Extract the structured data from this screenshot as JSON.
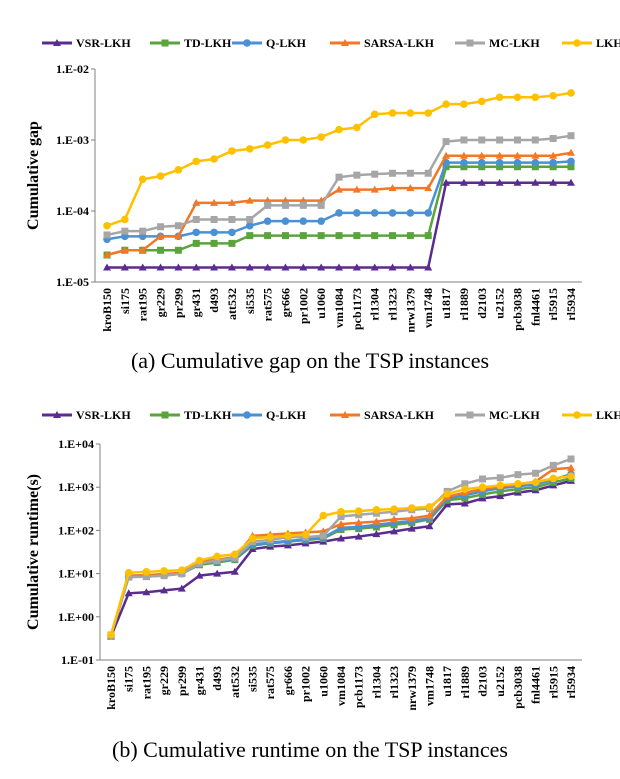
{
  "series_colors": [
    "#5b2c8f",
    "#5aa33d",
    "#4a90d4",
    "#f07826",
    "#a6a6a6",
    "#ffc000"
  ],
  "chart_data": [
    {
      "type": "line",
      "ylabel": "Cumulative gap",
      "caption": "(a) Cumulative gap on the TSP instances",
      "yscale": "log",
      "ylim": [
        1e-05,
        0.01
      ],
      "yticks": [
        1e-05,
        0.0001,
        0.001,
        0.01
      ],
      "ytick_labels": [
        "1.E-05",
        "1.E-04",
        "1.E-03",
        "1.E-02"
      ],
      "legend": "top",
      "grid": false,
      "categories": [
        "kroB150",
        "si175",
        "rat195",
        "gr229",
        "pr299",
        "gr431",
        "d493",
        "att532",
        "si535",
        "rat575",
        "gr666",
        "pr1002",
        "u1060",
        "vm1084",
        "pcb1173",
        "rl1304",
        "rl1323",
        "nrw1379",
        "vm1748",
        "u1817",
        "rl1889",
        "d2103",
        "u2152",
        "pcb3038",
        "fnl4461",
        "rl5915",
        "rl5934"
      ],
      "series": [
        {
          "name": "VSR-LKH",
          "values": [
            1.6e-05,
            1.6e-05,
            1.6e-05,
            1.6e-05,
            1.6e-05,
            1.6e-05,
            1.6e-05,
            1.6e-05,
            1.6e-05,
            1.6e-05,
            1.6e-05,
            1.6e-05,
            1.6e-05,
            1.6e-05,
            1.6e-05,
            1.6e-05,
            1.6e-05,
            1.6e-05,
            1.6e-05,
            0.00025,
            0.00025,
            0.00025,
            0.00025,
            0.00025,
            0.00025,
            0.00025,
            0.00025
          ]
        },
        {
          "name": "TD-LKH",
          "values": [
            2.4e-05,
            2.8e-05,
            2.8e-05,
            2.8e-05,
            2.8e-05,
            3.5e-05,
            3.5e-05,
            3.5e-05,
            4.5e-05,
            4.5e-05,
            4.5e-05,
            4.5e-05,
            4.5e-05,
            4.5e-05,
            4.5e-05,
            4.5e-05,
            4.5e-05,
            4.5e-05,
            4.5e-05,
            0.00042,
            0.00042,
            0.00042,
            0.00042,
            0.00042,
            0.00042,
            0.00042,
            0.00042
          ]
        },
        {
          "name": "Q-LKH",
          "values": [
            4e-05,
            4.4e-05,
            4.4e-05,
            4.4e-05,
            4.4e-05,
            5e-05,
            5e-05,
            5e-05,
            6.2e-05,
            7.2e-05,
            7.2e-05,
            7.2e-05,
            7.2e-05,
            9.4e-05,
            9.4e-05,
            9.4e-05,
            9.4e-05,
            9.4e-05,
            9.4e-05,
            0.00048,
            0.00048,
            0.00048,
            0.00048,
            0.00048,
            0.00048,
            0.00048,
            0.0005
          ]
        },
        {
          "name": "SARSA-LKH",
          "values": [
            2.4e-05,
            2.8e-05,
            2.8e-05,
            4.4e-05,
            4.4e-05,
            0.00013,
            0.00013,
            0.00013,
            0.00014,
            0.00014,
            0.00014,
            0.00014,
            0.00014,
            0.0002,
            0.0002,
            0.0002,
            0.00021,
            0.00021,
            0.00021,
            0.0006,
            0.0006,
            0.0006,
            0.0006,
            0.0006,
            0.0006,
            0.0006,
            0.00066
          ]
        },
        {
          "name": "MC-LKH",
          "values": [
            4.6e-05,
            5.2e-05,
            5.2e-05,
            6e-05,
            6.2e-05,
            7.6e-05,
            7.6e-05,
            7.6e-05,
            7.6e-05,
            0.00012,
            0.00012,
            0.00012,
            0.00012,
            0.0003,
            0.00032,
            0.00033,
            0.00034,
            0.00034,
            0.00034,
            0.00095,
            0.001,
            0.001,
            0.001,
            0.001,
            0.001,
            0.00105,
            0.00115
          ]
        },
        {
          "name": "LKH",
          "values": [
            6.2e-05,
            7.6e-05,
            0.00028,
            0.00031,
            0.00038,
            0.0005,
            0.00054,
            0.0007,
            0.00075,
            0.00085,
            0.001,
            0.001,
            0.0011,
            0.0014,
            0.0015,
            0.0023,
            0.0024,
            0.0024,
            0.0024,
            0.0032,
            0.0032,
            0.0035,
            0.004,
            0.004,
            0.004,
            0.0042,
            0.0046
          ]
        }
      ]
    },
    {
      "type": "line",
      "ylabel": "Cumulative runtime(s)",
      "caption": "(b) Cumulative runtime on the TSP instances",
      "yscale": "log",
      "ylim": [
        0.1,
        10000
      ],
      "yticks": [
        0.1,
        1,
        10,
        100,
        1000,
        10000
      ],
      "ytick_labels": [
        "1.E-01",
        "1.E+00",
        "1.E+01",
        "1.E+02",
        "1.E+03",
        "1.E+04"
      ],
      "legend": "top",
      "grid": false,
      "categories": [
        "kroB150",
        "si175",
        "rat195",
        "gr229",
        "pr299",
        "gr431",
        "d493",
        "att532",
        "si535",
        "rat575",
        "gr666",
        "pr1002",
        "u1060",
        "vm1084",
        "pcb1173",
        "rl1304",
        "rl1323",
        "nrw1379",
        "vm1748",
        "u1817",
        "rl1889",
        "d2103",
        "u2152",
        "pcb3038",
        "fnl4461",
        "rl5915",
        "rl5934"
      ],
      "series": [
        {
          "name": "VSR-LKH",
          "values": [
            0.35,
            3.5,
            3.7,
            4.1,
            4.5,
            9,
            10,
            11,
            37,
            42,
            45,
            50,
            55,
            65,
            72,
            82,
            95,
            110,
            125,
            400,
            420,
            550,
            620,
            750,
            850,
            1100,
            1400
          ]
        },
        {
          "name": "TD-LKH",
          "values": [
            0.37,
            8.5,
            8.6,
            9,
            10,
            16,
            18,
            21,
            45,
            50,
            55,
            60,
            65,
            105,
            110,
            120,
            135,
            150,
            180,
            500,
            560,
            680,
            800,
            900,
            1000,
            1300,
            1600
          ]
        },
        {
          "name": "Q-LKH",
          "values": [
            0.37,
            8.5,
            8.7,
            9.2,
            10,
            17,
            19,
            22,
            47,
            52,
            57,
            62,
            68,
            115,
            120,
            135,
            150,
            165,
            190,
            560,
            650,
            800,
            950,
            1050,
            1150,
            1500,
            2000
          ]
        },
        {
          "name": "SARSA-LKH",
          "values": [
            0.38,
            9,
            9.2,
            9.8,
            10.5,
            19,
            21,
            24,
            75,
            80,
            85,
            90,
            95,
            140,
            150,
            160,
            180,
            190,
            220,
            600,
            750,
            900,
            1050,
            1150,
            1350,
            2600,
            2800
          ]
        },
        {
          "name": "MC-LKH",
          "values": [
            0.38,
            8.3,
            8.5,
            9,
            10,
            17,
            20,
            23,
            55,
            60,
            70,
            70,
            75,
            210,
            230,
            250,
            270,
            300,
            320,
            800,
            1200,
            1550,
            1650,
            1950,
            2100,
            3200,
            4500
          ]
        },
        {
          "name": "LKH",
          "values": [
            0.38,
            10.5,
            11,
            11.5,
            12,
            20,
            25,
            28,
            65,
            70,
            75,
            80,
            220,
            270,
            280,
            300,
            310,
            330,
            350,
            700,
            900,
            1000,
            1100,
            1200,
            1300,
            1600,
            1800
          ]
        }
      ]
    }
  ]
}
